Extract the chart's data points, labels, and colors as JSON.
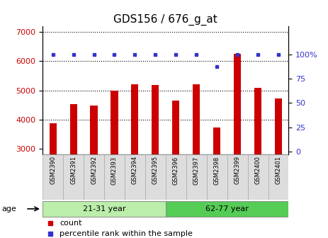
{
  "title": "GDS156 / 676_g_at",
  "samples": [
    "GSM2390",
    "GSM2391",
    "GSM2392",
    "GSM2393",
    "GSM2394",
    "GSM2395",
    "GSM2396",
    "GSM2397",
    "GSM2398",
    "GSM2399",
    "GSM2400",
    "GSM2401"
  ],
  "counts": [
    3880,
    4520,
    4490,
    5000,
    5200,
    5190,
    4650,
    5200,
    3720,
    6250,
    5090,
    4720
  ],
  "percentiles": [
    100,
    100,
    100,
    100,
    100,
    100,
    100,
    100,
    87,
    100,
    100,
    100
  ],
  "ylim_left": [
    2800,
    7200
  ],
  "ylim_right": [
    -3.2,
    128.8
  ],
  "yticks_left": [
    3000,
    4000,
    5000,
    6000,
    7000
  ],
  "yticks_right": [
    0,
    25,
    50,
    75,
    100
  ],
  "bar_color": "#cc0000",
  "dot_color": "#3333cc",
  "group1_label": "21-31 year",
  "group2_label": "62-77 year",
  "group_color1": "#bbeeaa",
  "group_color2": "#55cc55",
  "age_label": "age",
  "legend_count_label": "count",
  "legend_pct_label": "percentile rank within the sample",
  "bar_width": 0.35,
  "baseline": 2800,
  "dotted_grid_values": [
    4000,
    5000,
    6000,
    7000
  ],
  "title_fontsize": 11,
  "tick_fontsize": 8,
  "label_fontsize": 8
}
